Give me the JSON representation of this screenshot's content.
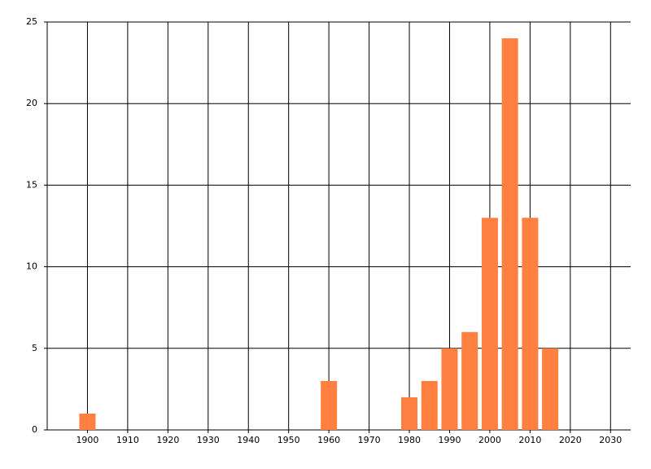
{
  "chart_data": {
    "type": "bar",
    "x": [
      1900,
      1960,
      1980,
      1985,
      1990,
      1995,
      2000,
      2005,
      2010,
      2015
    ],
    "values": [
      1,
      3,
      2,
      3,
      5,
      6,
      13,
      24,
      13,
      5
    ],
    "color": "#ff8040",
    "xlim": [
      1890,
      2035
    ],
    "xticks": [
      1900,
      1910,
      1920,
      1930,
      1940,
      1950,
      1960,
      1970,
      1980,
      1990,
      2000,
      2010,
      2020,
      2030
    ],
    "ylim": [
      0,
      25
    ],
    "yticks": [
      0,
      5,
      10,
      15,
      20,
      25
    ],
    "grid": true
  }
}
